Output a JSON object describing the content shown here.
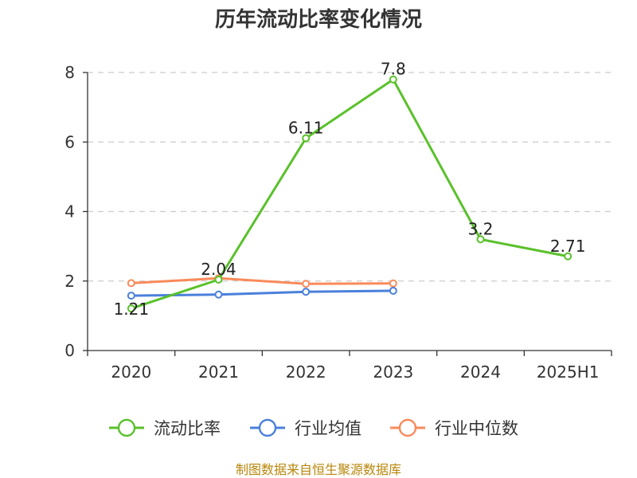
{
  "chart_data": {
    "type": "line",
    "title": "历年流动比率变化情况",
    "categories": [
      "2020",
      "2021",
      "2022",
      "2023",
      "2024",
      "2025H1"
    ],
    "ylim": [
      0,
      8
    ],
    "yticks": [
      "0",
      "2",
      "4",
      "6",
      "8"
    ],
    "grid": true,
    "legend_position": "bottom",
    "series": [
      {
        "name": "流动比率",
        "color": "#5ac12b",
        "values": [
          1.21,
          2.04,
          6.11,
          7.8,
          3.2,
          2.71
        ],
        "labels": [
          "1.21",
          "2.04",
          "6.11",
          "7.8",
          "3.2",
          "2.71"
        ]
      },
      {
        "name": "行业均值",
        "color": "#4a80db",
        "values": [
          1.58,
          1.61,
          1.69,
          1.72,
          null,
          null
        ]
      },
      {
        "name": "行业中位数",
        "color": "#f98a5a",
        "values": [
          1.94,
          2.08,
          1.92,
          1.93,
          null,
          null
        ]
      }
    ],
    "source": "制图数据来自恒生聚源数据库"
  }
}
